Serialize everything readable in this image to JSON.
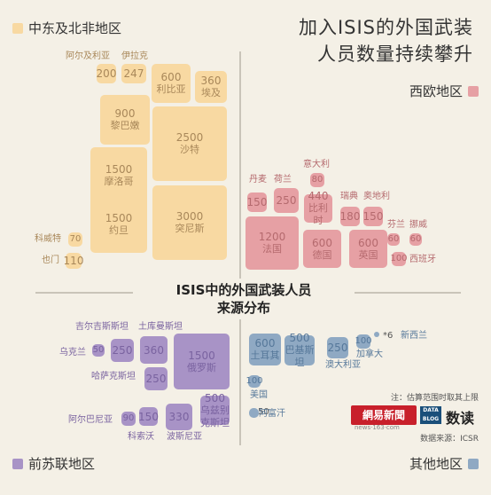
{
  "title": [
    "加入ISIS的外国武装",
    "人员数量持续攀升"
  ],
  "center_title": [
    "ISIS中的外国武装人员",
    "来源分布"
  ],
  "note": "注：估算范围时取其上限",
  "source": "数据来源：ICSR",
  "logo": {
    "netease": "網易新聞",
    "netease_url": "news·163·com",
    "datablog": "DATA BLOG",
    "shudu": "数读"
  },
  "colors": {
    "middle_east": "#f8d9a2",
    "west_europe": "#e6a0a4",
    "former_soviet": "#a893c6",
    "other": "#8fa9c3"
  },
  "chart_data": {
    "type": "treemap",
    "regions": [
      {
        "name": "中东及北非地区",
        "color": "#f8d9a2",
        "text_color": "#a9885a",
        "items": [
          {
            "country": "阿尔及利亚",
            "value": 200
          },
          {
            "country": "伊拉克",
            "value": 247
          },
          {
            "country": "利比亚",
            "value": 600
          },
          {
            "country": "埃及",
            "value": 360
          },
          {
            "country": "黎巴嫩",
            "value": 900
          },
          {
            "country": "沙特",
            "value": 2500
          },
          {
            "country": "摩洛哥",
            "value": 1500
          },
          {
            "country": "约旦",
            "value": 1500
          },
          {
            "country": "突尼斯",
            "value": 3000
          },
          {
            "country": "科威特",
            "value": 70
          },
          {
            "country": "也门",
            "value": 110
          }
        ]
      },
      {
        "name": "西欧地区",
        "color": "#e6a0a4",
        "text_color": "#b56a6e",
        "items": [
          {
            "country": "丹麦",
            "value": 150
          },
          {
            "country": "荷兰",
            "value": 250
          },
          {
            "country": "意大利",
            "value": 80
          },
          {
            "country": "比利时",
            "value": 440
          },
          {
            "country": "瑞典",
            "value": 180
          },
          {
            "country": "奥地利",
            "value": 150
          },
          {
            "country": "法国",
            "value": 1200
          },
          {
            "country": "德国",
            "value": 600
          },
          {
            "country": "英国",
            "value": 600
          },
          {
            "country": "芬兰",
            "value": 60
          },
          {
            "country": "挪威",
            "value": 60
          },
          {
            "country": "西班牙",
            "value": 100
          }
        ]
      },
      {
        "name": "前苏联地区",
        "color": "#a893c6",
        "text_color": "#7a63a0",
        "items": [
          {
            "country": "吉尔吉斯斯坦",
            "value": 250
          },
          {
            "country": "土库曼斯坦",
            "value": 360
          },
          {
            "country": "乌克兰",
            "value": 50
          },
          {
            "country": "俄罗斯",
            "value": 1500
          },
          {
            "country": "哈萨克斯坦",
            "value": 250
          },
          {
            "country": "阿尔巴尼亚",
            "value": 90
          },
          {
            "country": "科索沃",
            "value": 150
          },
          {
            "country": "波斯尼亚",
            "value": 330
          },
          {
            "country": "乌兹别克斯坦",
            "value": 500
          }
        ]
      },
      {
        "name": "其他地区",
        "color": "#8fa9c3",
        "text_color": "#56789a",
        "items": [
          {
            "country": "土耳其",
            "value": 600
          },
          {
            "country": "巴基斯坦",
            "value": 500
          },
          {
            "country": "澳大利亚",
            "value": 250
          },
          {
            "country": "加拿大",
            "value": 100
          },
          {
            "country": "新西兰",
            "value": 6
          },
          {
            "country": "美国",
            "value": 100
          },
          {
            "country": "阿富汗",
            "value": 50
          }
        ]
      }
    ]
  }
}
